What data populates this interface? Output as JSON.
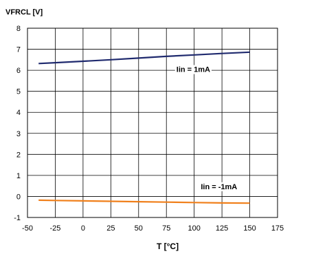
{
  "chart_data": {
    "type": "line",
    "title": "",
    "ylabel": "VFRCL [V]",
    "xlabel": "T [°C]",
    "xlim": [
      -50,
      175
    ],
    "ylim": [
      -1,
      8
    ],
    "x_ticks": [
      -50,
      -25,
      0,
      25,
      50,
      75,
      100,
      125,
      150,
      175
    ],
    "y_ticks": [
      -1,
      0,
      1,
      2,
      3,
      4,
      5,
      6,
      7,
      8
    ],
    "grid": true,
    "series": [
      {
        "name": "Iin = 1mA",
        "color": "#1f2a6e",
        "x": [
          -40,
          -25,
          0,
          25,
          50,
          75,
          100,
          125,
          150
        ],
        "y": [
          6.32,
          6.36,
          6.43,
          6.5,
          6.58,
          6.66,
          6.73,
          6.8,
          6.86
        ]
      },
      {
        "name": "Iin = -1mA",
        "color": "#f07f1a",
        "x": [
          -40,
          -25,
          0,
          25,
          50,
          75,
          100,
          125,
          150
        ],
        "y": [
          -0.18,
          -0.19,
          -0.21,
          -0.23,
          -0.25,
          -0.27,
          -0.29,
          -0.31,
          -0.32
        ]
      }
    ]
  }
}
